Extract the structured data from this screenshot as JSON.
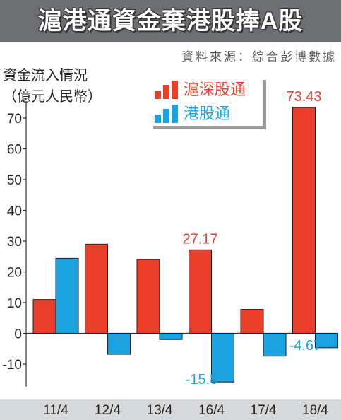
{
  "header": {
    "title": "滬港通資金棄港股捧A股",
    "source": "資料來源：綜合彭博數據"
  },
  "colors": {
    "header_bg": "#6d6e71",
    "bottom_band": "#d7d8da",
    "shanghai_connect": "#ea3e2a",
    "hk_connect": "#1aa3e0"
  },
  "chart_data": {
    "type": "bar",
    "ylabel": [
      "資金流入情況",
      "（億元人民幣）"
    ],
    "xlabel": "",
    "categories": [
      "11/4",
      "12/4",
      "13/4",
      "16/4",
      "17/4",
      "18/4"
    ],
    "ylim": [
      -15,
      80
    ],
    "yticks": [
      -10,
      0,
      10,
      20,
      30,
      40,
      50,
      60,
      70
    ],
    "grid": false,
    "legend_position": "top-center",
    "series": [
      {
        "name": "滬深股通",
        "color": "#ea3e2a",
        "values": [
          11,
          29,
          24,
          27.17,
          7.8,
          73.43
        ],
        "data_labels": [
          "",
          "",
          "",
          "27.17",
          "",
          "73.43"
        ]
      },
      {
        "name": "港股通",
        "color": "#1aa3e0",
        "values": [
          24.4,
          -6.8,
          -2,
          -15.8,
          -7.4,
          -4.67
        ],
        "data_labels": [
          "",
          "",
          "",
          "-15.8",
          "",
          "-4.67"
        ]
      }
    ]
  }
}
